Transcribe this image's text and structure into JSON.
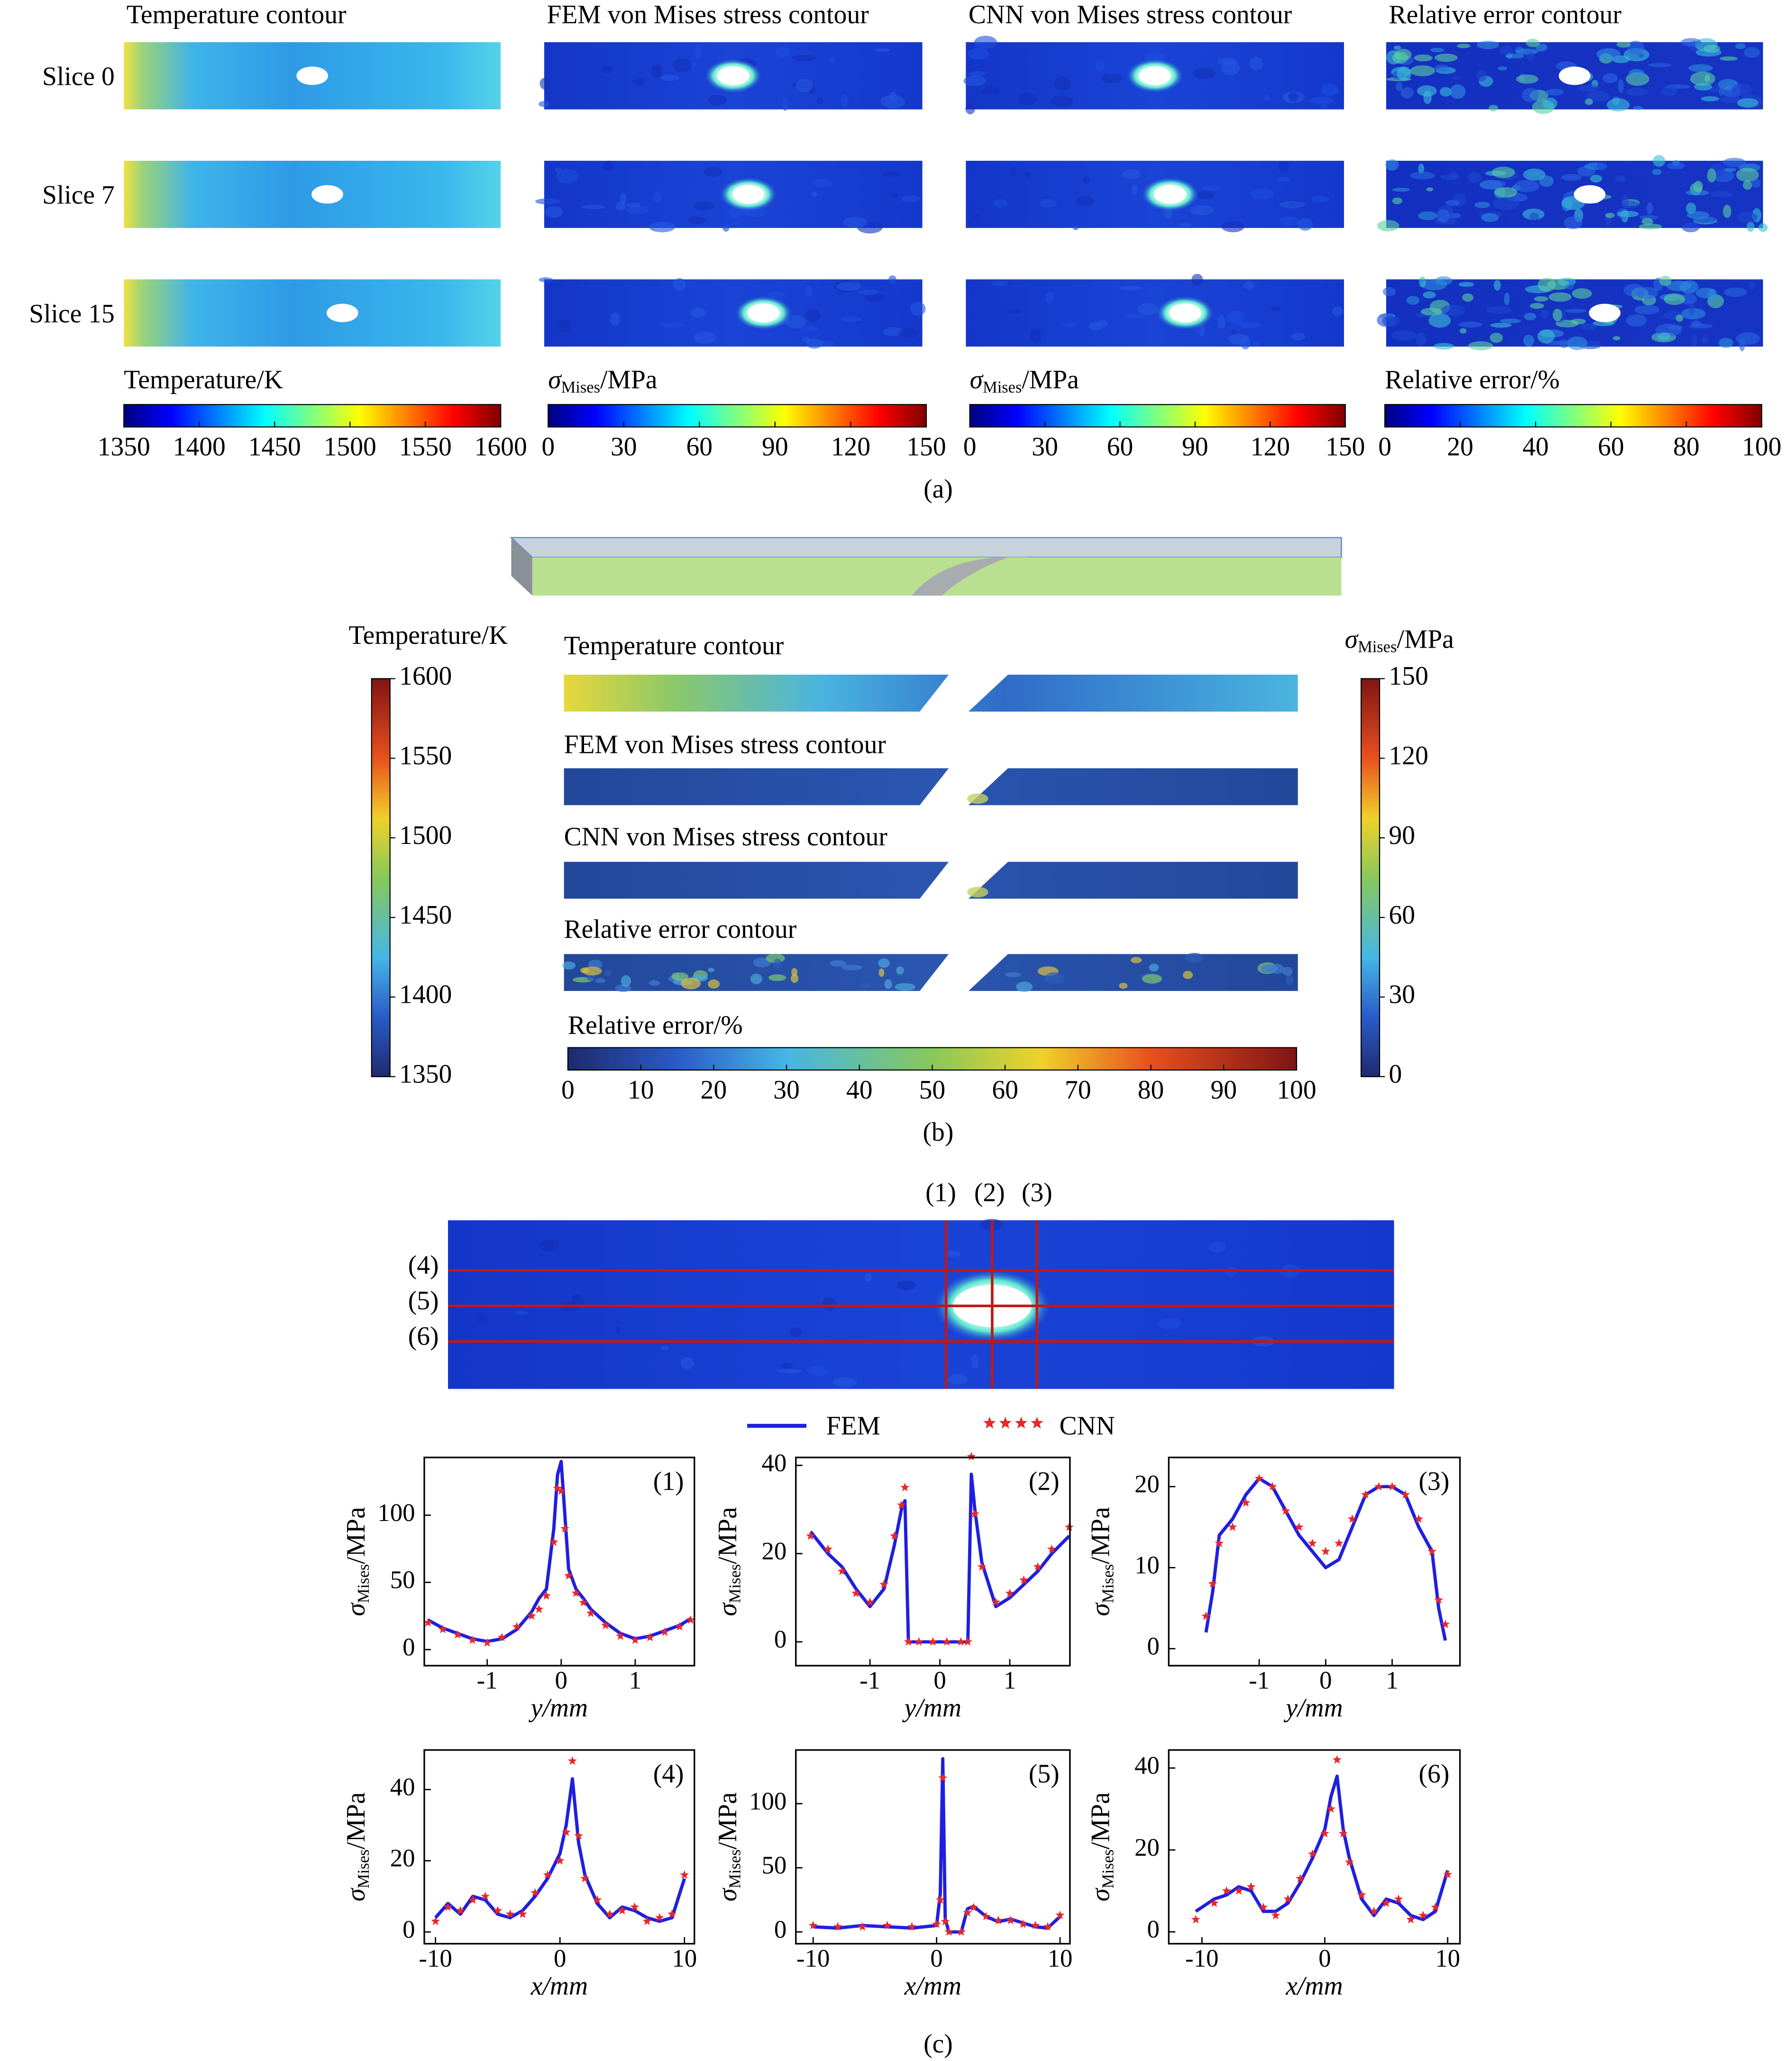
{
  "panel_a": {
    "column_titles": [
      "Temperature contour",
      "FEM von Mises stress contour",
      "CNN von Mises stress contour",
      "Relative error contour"
    ],
    "row_labels": [
      "Slice 0",
      "Slice 7",
      "Slice 15"
    ],
    "colorbars": [
      {
        "label": "Temperature/K",
        "range": [
          1350,
          1600
        ],
        "ticks": [
          1350,
          1400,
          1450,
          1500,
          1550,
          1600
        ]
      },
      {
        "label": {
          "symbol": "σ",
          "subscript": "Mises",
          "unit": "/MPa"
        },
        "range": [
          0,
          150
        ],
        "ticks": [
          0,
          30,
          60,
          90,
          120,
          150
        ]
      },
      {
        "label": {
          "symbol": "σ",
          "subscript": "Mises",
          "unit": "/MPa"
        },
        "range": [
          0,
          150
        ],
        "ticks": [
          0,
          30,
          60,
          90,
          120,
          150
        ]
      },
      {
        "label": "Relative error/%",
        "range": [
          0,
          100
        ],
        "ticks": [
          0,
          20,
          40,
          60,
          80,
          100
        ]
      }
    ],
    "caption": "(a)"
  },
  "panel_b": {
    "strip_titles": [
      "Temperature contour",
      "FEM von Mises stress contour",
      "CNN von Mises stress contour",
      "Relative error contour"
    ],
    "colorbars": [
      {
        "label": "Temperature/K",
        "range": [
          1350,
          1600
        ],
        "ticks": [
          1350,
          1400,
          1450,
          1500,
          1550,
          1600
        ]
      },
      {
        "label": {
          "symbol": "σ",
          "subscript": "Mises",
          "unit": "/MPa"
        },
        "range": [
          0,
          150
        ],
        "ticks": [
          0,
          30,
          60,
          90,
          120,
          150
        ]
      },
      {
        "label": "Relative error/%",
        "range": [
          0,
          100
        ],
        "ticks": [
          0,
          10,
          20,
          30,
          40,
          50,
          60,
          70,
          80,
          90,
          100
        ]
      }
    ],
    "caption": "(b)"
  },
  "panel_c": {
    "line_labels": [
      "(1)",
      "(2)",
      "(3)",
      "(4)",
      "(5)",
      "(6)"
    ],
    "caption": "(c)"
  },
  "chart_data": [
    {
      "type": "line",
      "annotation": "(1)",
      "xlabel": "y/mm",
      "ylabel": {
        "symbol": "σ",
        "subscript": "Mises",
        "unit": "/MPa"
      },
      "x": [
        -1.8,
        -1.6,
        -1.4,
        -1.2,
        -1.0,
        -0.8,
        -0.6,
        -0.4,
        -0.3,
        -0.2,
        -0.1,
        -0.05,
        0,
        0.05,
        0.1,
        0.2,
        0.3,
        0.4,
        0.6,
        0.8,
        1.0,
        1.2,
        1.4,
        1.6,
        1.75
      ],
      "series": [
        {
          "name": "FEM",
          "color": "#1f1fe0",
          "values": [
            22,
            16,
            12,
            8,
            6,
            8,
            15,
            28,
            38,
            45,
            90,
            130,
            140,
            100,
            60,
            45,
            38,
            30,
            20,
            12,
            8,
            10,
            14,
            18,
            23
          ]
        },
        {
          "name": "CNN",
          "color": "#e8282a",
          "marker": "star",
          "values": [
            20,
            15,
            11,
            7,
            5,
            9,
            17,
            25,
            30,
            40,
            80,
            120,
            118,
            90,
            55,
            42,
            35,
            27,
            18,
            10,
            7,
            9,
            13,
            17,
            22
          ]
        }
      ],
      "xlim": [
        -1.85,
        1.8
      ],
      "ylim": [
        -12,
        143
      ],
      "xticks": [
        -1,
        0,
        1
      ],
      "yticks": [
        0,
        50,
        100
      ]
    },
    {
      "type": "line",
      "annotation": "(2)",
      "xlabel": "y/mm",
      "ylabel": {
        "symbol": "σ",
        "subscript": "Mises",
        "unit": "/MPa"
      },
      "x": [
        -1.85,
        -1.6,
        -1.4,
        -1.2,
        -1.0,
        -0.8,
        -0.65,
        -0.55,
        -0.5,
        -0.45,
        -0.3,
        -0.1,
        0.1,
        0.3,
        0.4,
        0.45,
        0.5,
        0.6,
        0.8,
        1.0,
        1.2,
        1.4,
        1.6,
        1.85
      ],
      "series": [
        {
          "color": "#1f1fe0",
          "values": [
            25,
            20,
            17,
            12,
            8,
            12,
            22,
            30,
            32,
            0,
            0,
            0,
            0,
            0,
            0,
            38,
            30,
            18,
            8,
            10,
            13,
            16,
            20,
            24
          ]
        },
        {
          "color": "#e8282a",
          "marker": "star",
          "values": [
            24,
            21,
            16,
            11,
            9,
            13,
            24,
            31,
            35,
            0,
            0,
            0,
            0,
            0,
            0,
            42,
            29,
            17,
            9,
            11,
            14,
            17,
            21,
            26
          ]
        }
      ],
      "xlim": [
        -2.06,
        1.86
      ],
      "ylim": [
        -5.4,
        41.8
      ],
      "xticks": [
        -1,
        0,
        1
      ],
      "yticks": [
        0,
        20,
        40
      ]
    },
    {
      "type": "line",
      "annotation": "(3)",
      "xlabel": "y/mm",
      "ylabel": {
        "symbol": "σ",
        "subscript": "Mises",
        "unit": "/MPa"
      },
      "x": [
        -1.8,
        -1.7,
        -1.6,
        -1.4,
        -1.2,
        -1.0,
        -0.8,
        -0.6,
        -0.4,
        -0.2,
        0,
        0.2,
        0.4,
        0.6,
        0.8,
        1.0,
        1.2,
        1.4,
        1.6,
        1.7,
        1.8
      ],
      "series": [
        {
          "color": "#1f1fe0",
          "values": [
            2,
            7,
            14,
            16,
            19,
            21,
            20,
            17,
            14,
            12,
            10,
            11,
            15,
            19,
            20,
            20,
            19,
            15,
            12,
            5,
            1
          ]
        },
        {
          "color": "#e8282a",
          "marker": "star",
          "values": [
            4,
            8,
            13,
            15,
            18,
            21,
            20,
            17,
            15,
            13,
            12,
            13,
            16,
            19,
            20,
            20,
            19,
            16,
            12,
            6,
            3
          ]
        }
      ],
      "xlim": [
        -2.36,
        2.02
      ],
      "ylim": [
        -2.1,
        23.6
      ],
      "xticks": [
        -1,
        0,
        1
      ],
      "yticks": [
        0,
        10,
        20
      ]
    },
    {
      "type": "line",
      "annotation": "(4)",
      "xlabel": "x/mm",
      "ylabel": {
        "symbol": "σ",
        "subscript": "Mises",
        "unit": "/MPa"
      },
      "x": [
        -10,
        -9,
        -8,
        -7,
        -6,
        -5,
        -4,
        -3,
        -2,
        -1,
        0,
        0.5,
        1,
        1.5,
        2,
        3,
        4,
        5,
        6,
        7,
        8,
        9,
        10
      ],
      "series": [
        {
          "color": "#1f1fe0",
          "values": [
            4,
            8,
            5,
            10,
            9,
            5,
            4,
            6,
            10,
            15,
            22,
            30,
            43,
            25,
            16,
            8,
            4,
            7,
            6,
            4,
            3,
            4,
            15
          ]
        },
        {
          "color": "#e8282a",
          "marker": "star",
          "values": [
            3,
            7,
            6,
            9,
            10,
            6,
            5,
            5,
            11,
            16,
            20,
            28,
            48,
            27,
            15,
            9,
            5,
            6,
            7,
            3,
            4,
            5,
            16
          ]
        }
      ],
      "xlim": [
        -10.9,
        10.8
      ],
      "ylim": [
        -3.3,
        51.1
      ],
      "xticks": [
        -10,
        0,
        10
      ],
      "yticks": [
        0,
        20,
        40
      ]
    },
    {
      "type": "line",
      "annotation": "(5)",
      "xlabel": "x/mm",
      "ylabel": {
        "symbol": "σ",
        "subscript": "Mises",
        "unit": "/MPa"
      },
      "x": [
        -10,
        -8,
        -6,
        -4,
        -2,
        0,
        0.3,
        0.5,
        0.7,
        1,
        2,
        2.5,
        3,
        4,
        5,
        6,
        7,
        8,
        9,
        10
      ],
      "series": [
        {
          "color": "#1f1fe0",
          "values": [
            4,
            3,
            5,
            4,
            3,
            5,
            30,
            135,
            10,
            0,
            0,
            18,
            20,
            12,
            8,
            10,
            7,
            4,
            3,
            12
          ]
        },
        {
          "color": "#e8282a",
          "marker": "star",
          "values": [
            5,
            4,
            4,
            5,
            4,
            6,
            25,
            120,
            8,
            0,
            0,
            15,
            19,
            12,
            9,
            9,
            6,
            5,
            4,
            13
          ]
        }
      ],
      "xlim": [
        -11.4,
        10.8
      ],
      "ylim": [
        -9.2,
        141.8
      ],
      "xticks": [
        -10,
        0,
        10
      ],
      "yticks": [
        0,
        50,
        100
      ]
    },
    {
      "type": "line",
      "annotation": "(6)",
      "xlabel": "x/mm",
      "ylabel": {
        "symbol": "σ",
        "subscript": "Mises",
        "unit": "/MPa"
      },
      "x": [
        -10.5,
        -9,
        -8,
        -7,
        -6,
        -5,
        -4,
        -3,
        -2,
        -1,
        0,
        0.5,
        1,
        1.5,
        2,
        3,
        4,
        5,
        6,
        7,
        8,
        9,
        10
      ],
      "series": [
        {
          "color": "#1f1fe0",
          "values": [
            5,
            8,
            9,
            11,
            10,
            5,
            5,
            7,
            12,
            18,
            25,
            33,
            38,
            25,
            18,
            8,
            4,
            8,
            7,
            4,
            3,
            5,
            15
          ]
        },
        {
          "color": "#e8282a",
          "marker": "star",
          "values": [
            3,
            7,
            10,
            10,
            11,
            6,
            4,
            8,
            13,
            19,
            24,
            30,
            42,
            24,
            17,
            9,
            5,
            7,
            8,
            3,
            4,
            6,
            14
          ]
        }
      ],
      "xlim": [
        -12.7,
        11.0
      ],
      "ylim": [
        -2.9,
        44.4
      ],
      "xticks": [
        -10,
        0,
        10
      ],
      "yticks": [
        0,
        20,
        40
      ]
    }
  ]
}
